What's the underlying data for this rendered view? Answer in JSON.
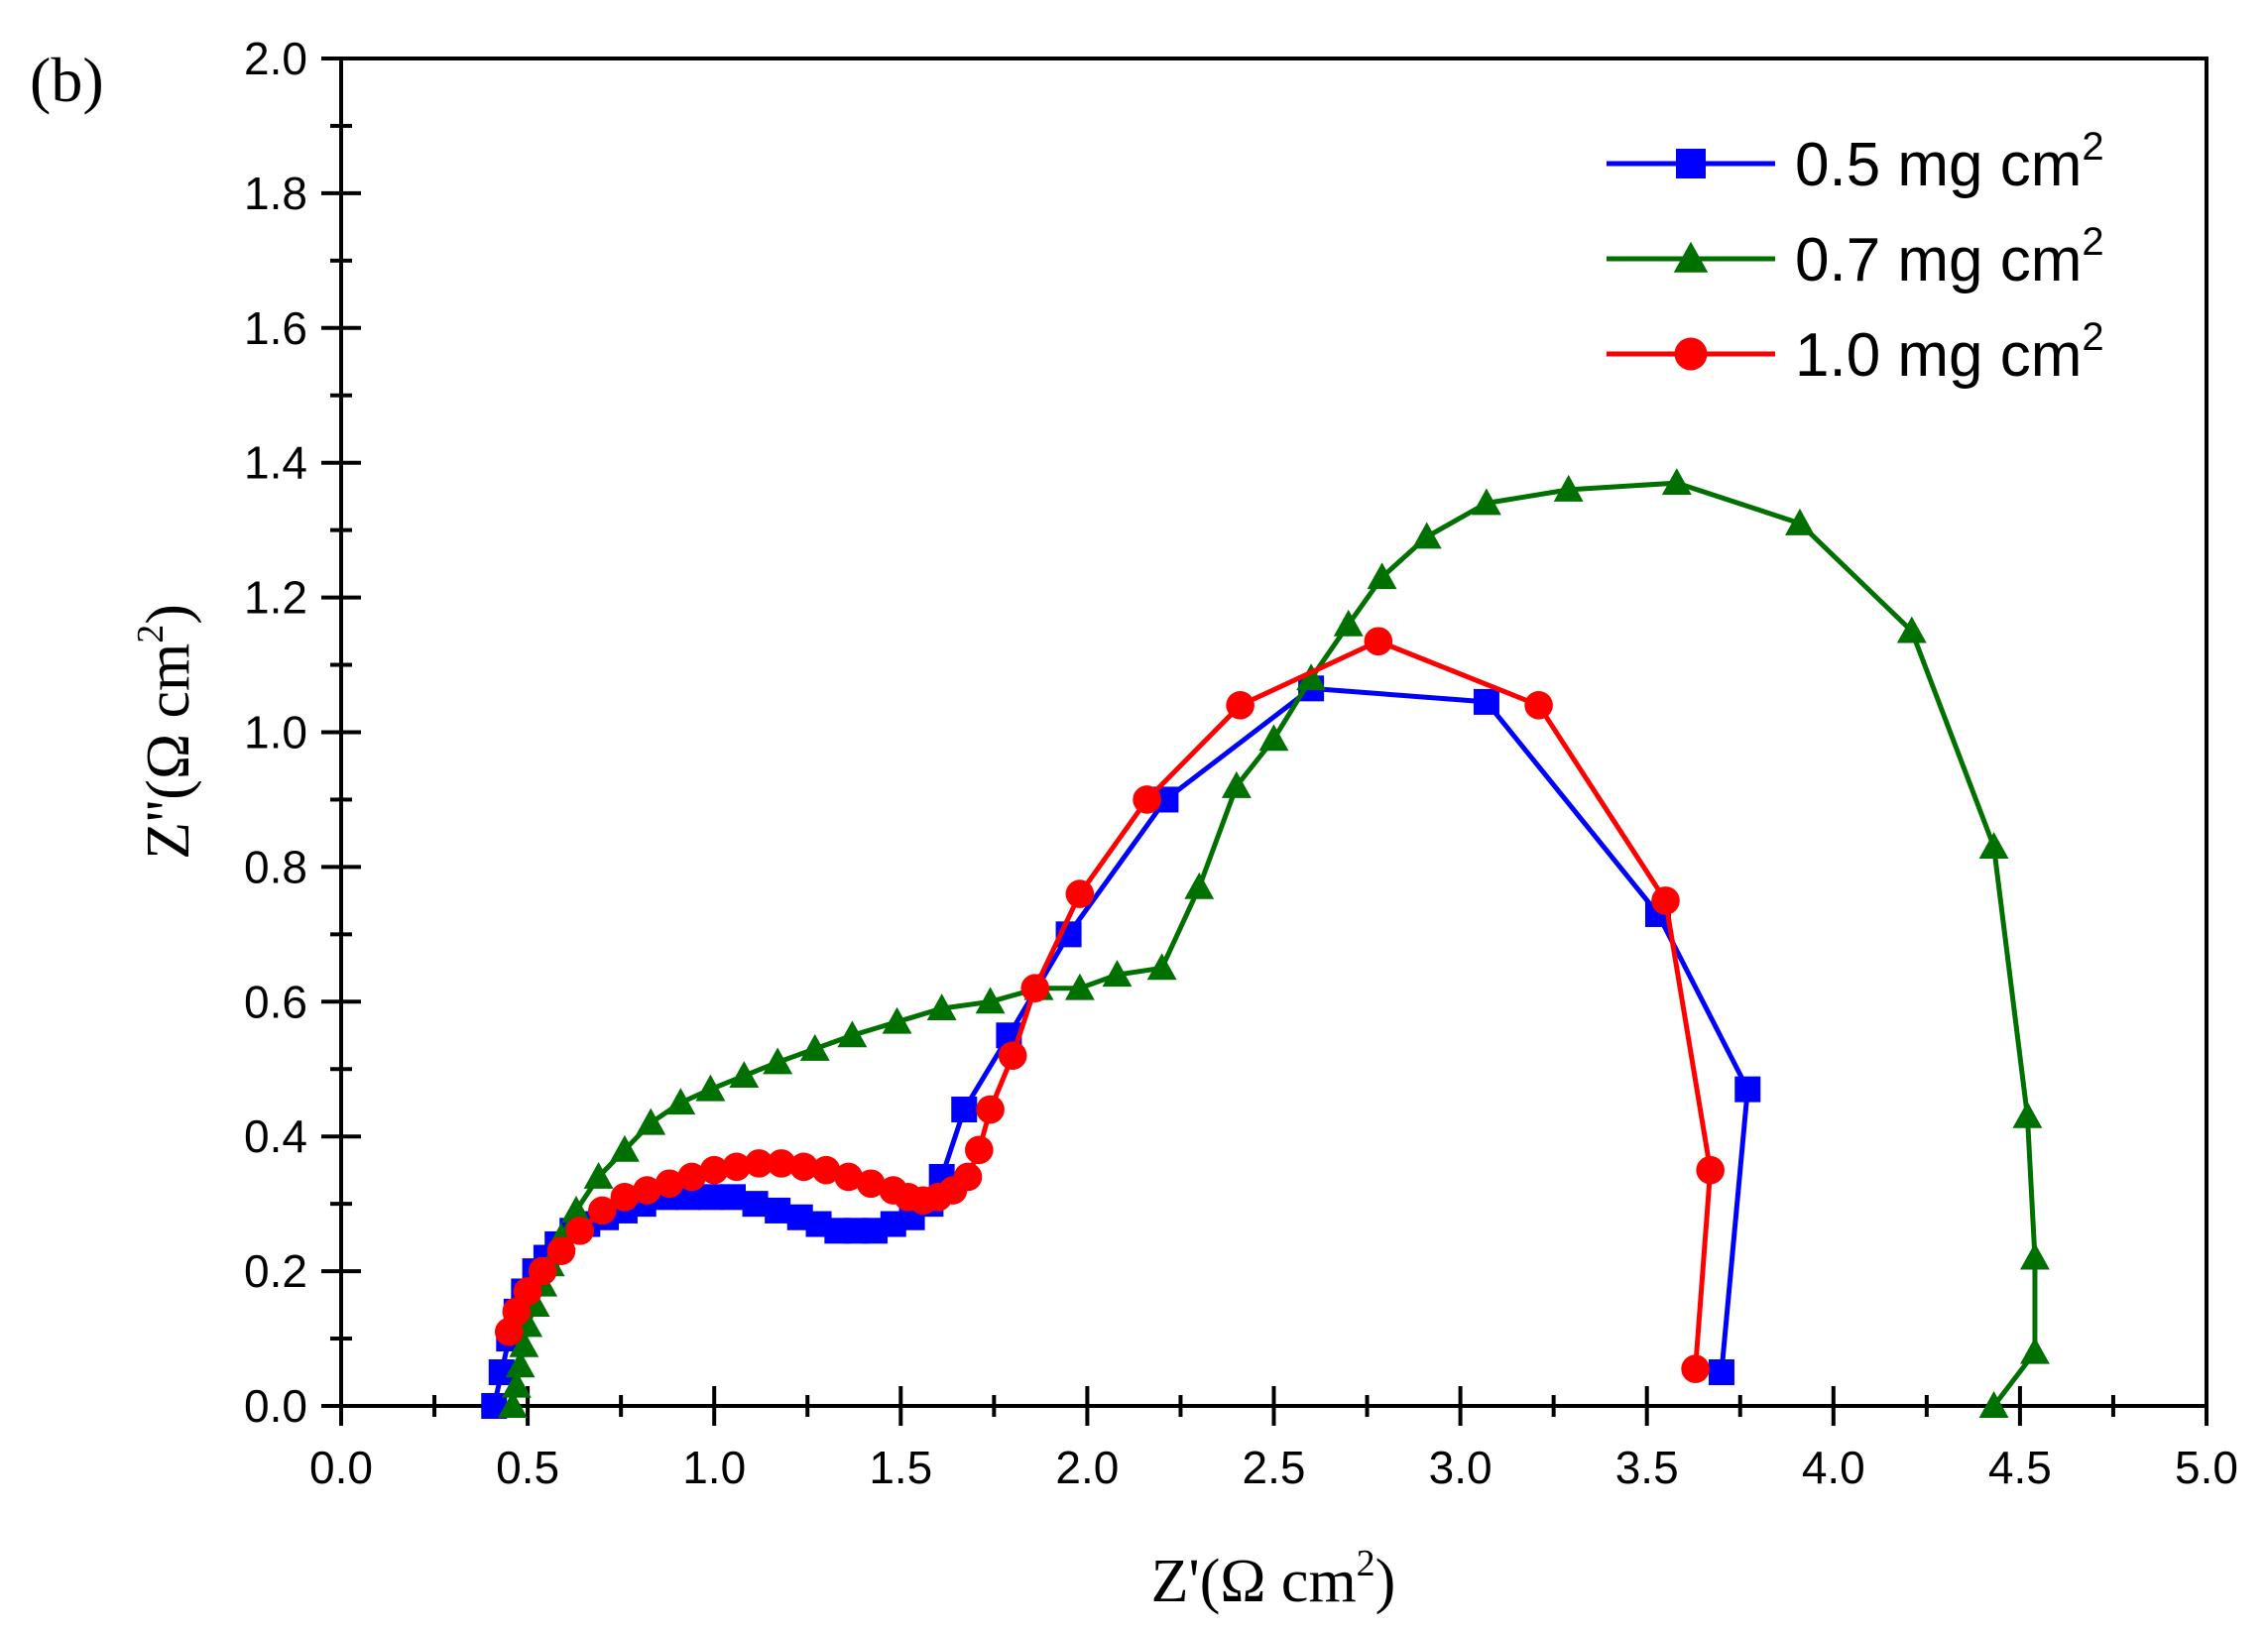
{
  "panel_label": "(b)",
  "chart_data": {
    "type": "line",
    "title": "",
    "xlabel": "Z'(Ω cm",
    "xlabel_sup": "2",
    "xlabel_close": ")",
    "ylabel": "Z''(Ω cm",
    "ylabel_sup": "2",
    "ylabel_close": ")",
    "xlim": [
      0.0,
      5.0
    ],
    "ylim": [
      0.0,
      2.0
    ],
    "xticks": [
      0.0,
      0.5,
      1.0,
      1.5,
      2.0,
      2.5,
      3.0,
      3.5,
      4.0,
      4.5,
      5.0
    ],
    "xtick_labels": [
      "0.0",
      "0.5",
      "1.0",
      "1.5",
      "2.0",
      "2.5",
      "3.0",
      "3.5",
      "4.0",
      "4.5",
      "5.0"
    ],
    "yticks": [
      0.0,
      0.2,
      0.4,
      0.6,
      0.8,
      1.0,
      1.2,
      1.4,
      1.6,
      1.8,
      2.0
    ],
    "ytick_labels": [
      "0.0",
      "0.2",
      "0.4",
      "0.6",
      "0.8",
      "1.0",
      "1.2",
      "1.4",
      "1.6",
      "1.8",
      "2.0"
    ],
    "legend_position": "top-right",
    "grid": false,
    "series": [
      {
        "name": "0.5 mg cm",
        "name_sup": "2",
        "color": "#0000ff",
        "marker": "square",
        "x": [
          0.41,
          0.43,
          0.45,
          0.47,
          0.49,
          0.52,
          0.55,
          0.58,
          0.62,
          0.66,
          0.71,
          0.76,
          0.81,
          0.87,
          0.93,
          0.99,
          1.05,
          1.11,
          1.17,
          1.23,
          1.28,
          1.33,
          1.38,
          1.43,
          1.48,
          1.53,
          1.58,
          1.61,
          1.67,
          1.79,
          1.95,
          2.21,
          2.6,
          3.07,
          3.53,
          3.77,
          3.7
        ],
        "y": [
          0.0,
          0.05,
          0.1,
          0.14,
          0.17,
          0.2,
          0.22,
          0.24,
          0.26,
          0.27,
          0.28,
          0.29,
          0.3,
          0.31,
          0.31,
          0.31,
          0.31,
          0.3,
          0.29,
          0.28,
          0.27,
          0.26,
          0.26,
          0.26,
          0.27,
          0.28,
          0.3,
          0.34,
          0.44,
          0.55,
          0.7,
          0.9,
          1.065,
          1.045,
          0.73,
          0.47,
          0.05
        ]
      },
      {
        "name": "0.7 mg cm",
        "name_sup": "2",
        "color": "#007000",
        "marker": "triangle",
        "x": [
          0.46,
          0.47,
          0.48,
          0.49,
          0.5,
          0.52,
          0.54,
          0.56,
          0.59,
          0.63,
          0.69,
          0.76,
          0.83,
          0.91,
          0.99,
          1.08,
          1.17,
          1.27,
          1.37,
          1.49,
          1.61,
          1.74,
          1.87,
          1.98,
          2.08,
          2.2,
          2.3,
          2.4,
          2.5,
          2.6,
          2.7,
          2.79,
          2.91,
          3.07,
          3.29,
          3.58,
          3.91,
          4.21,
          4.43,
          4.52,
          4.54,
          4.54,
          4.43
        ],
        "y": [
          0.0,
          0.03,
          0.06,
          0.09,
          0.12,
          0.15,
          0.18,
          0.21,
          0.25,
          0.29,
          0.34,
          0.38,
          0.42,
          0.45,
          0.47,
          0.49,
          0.51,
          0.53,
          0.55,
          0.57,
          0.59,
          0.6,
          0.62,
          0.62,
          0.64,
          0.65,
          0.77,
          0.92,
          0.99,
          1.08,
          1.16,
          1.23,
          1.29,
          1.34,
          1.36,
          1.37,
          1.31,
          1.15,
          0.83,
          0.43,
          0.22,
          0.08,
          0.0
        ]
      },
      {
        "name": "1.0 mg cm",
        "name_sup": "2",
        "color": "#ff0000",
        "marker": "circle",
        "x": [
          0.45,
          0.47,
          0.5,
          0.54,
          0.59,
          0.64,
          0.7,
          0.76,
          0.82,
          0.88,
          0.94,
          1.0,
          1.06,
          1.12,
          1.18,
          1.24,
          1.3,
          1.36,
          1.42,
          1.48,
          1.52,
          1.56,
          1.6,
          1.64,
          1.68,
          1.71,
          1.74,
          1.8,
          1.86,
          1.98,
          2.16,
          2.41,
          2.78,
          3.21,
          3.55,
          3.67,
          3.63
        ],
        "y": [
          0.11,
          0.14,
          0.17,
          0.2,
          0.23,
          0.26,
          0.29,
          0.31,
          0.32,
          0.33,
          0.34,
          0.35,
          0.355,
          0.36,
          0.36,
          0.355,
          0.35,
          0.34,
          0.33,
          0.32,
          0.31,
          0.305,
          0.31,
          0.32,
          0.34,
          0.38,
          0.44,
          0.52,
          0.62,
          0.76,
          0.9,
          1.04,
          1.135,
          1.04,
          0.75,
          0.35,
          0.055
        ]
      }
    ]
  }
}
